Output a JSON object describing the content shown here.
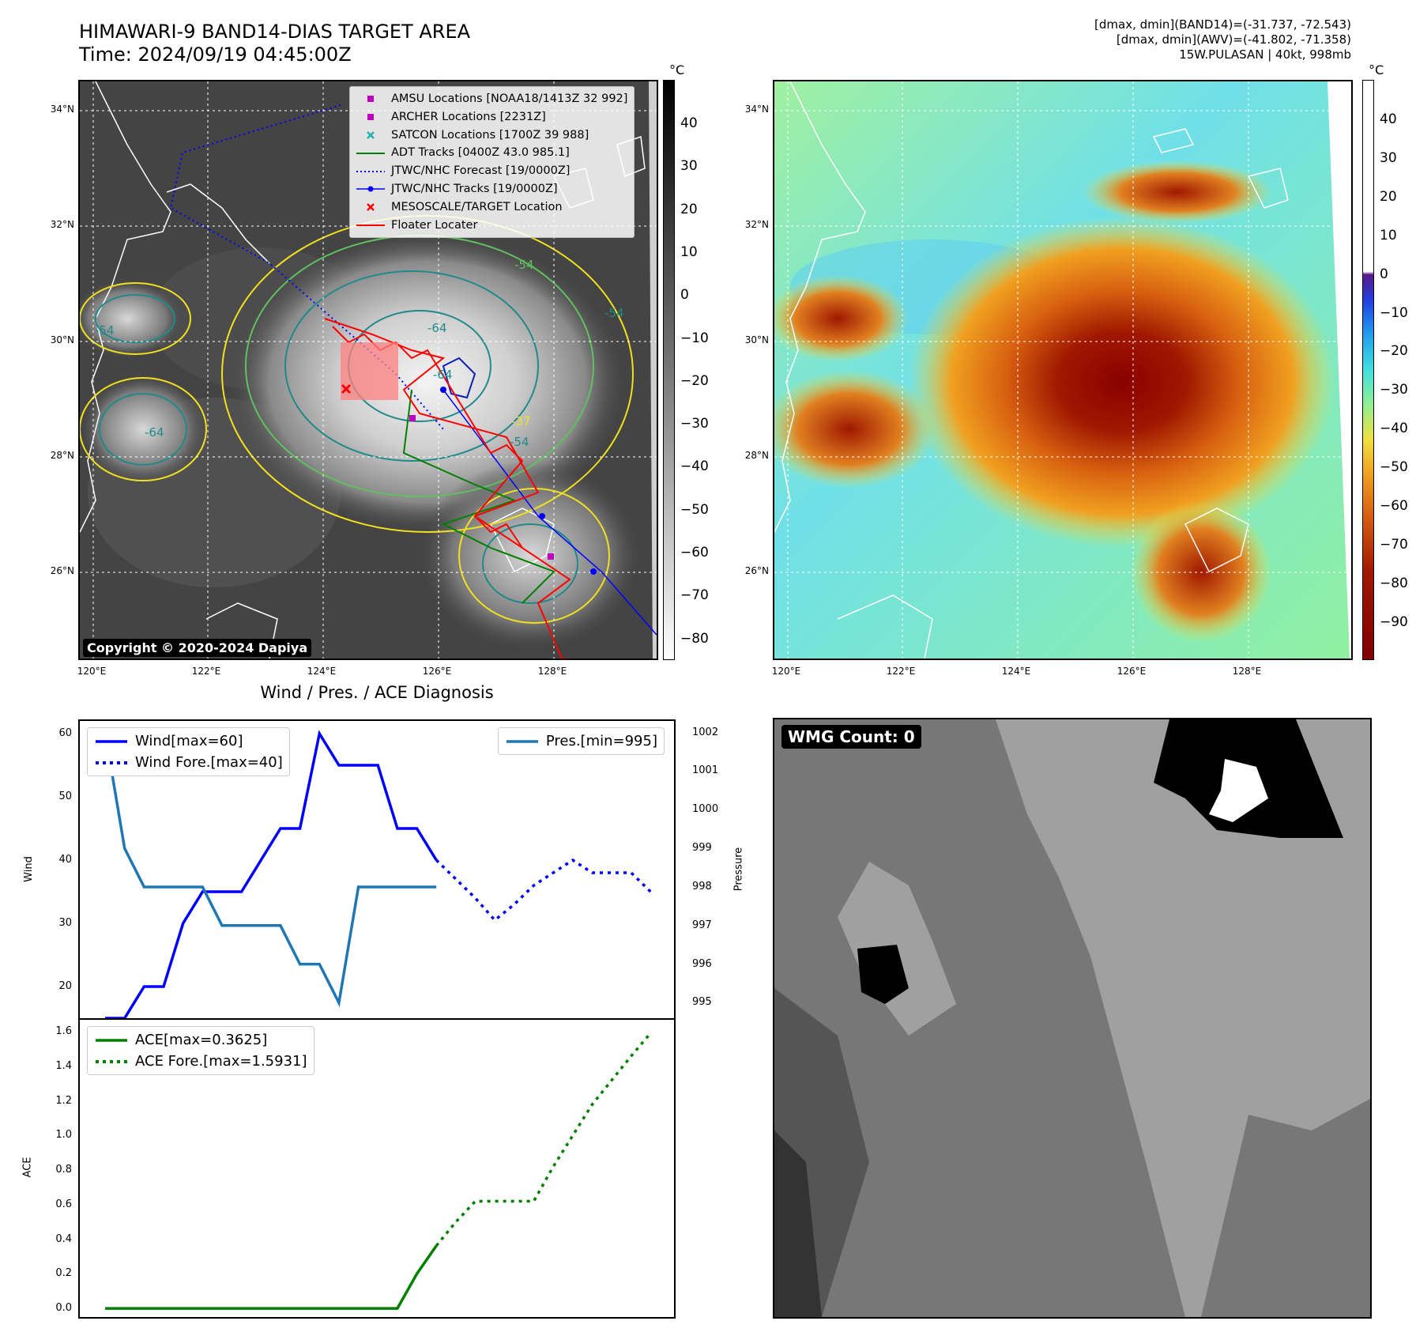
{
  "header": {
    "title_line1": "HIMAWARI-9 BAND14-DIAS TARGET AREA",
    "title_line2": "Time: 2024/09/19 04:45:00Z",
    "stats_line1": "[dmax, dmin](BAND14)=(-31.737, -72.543)",
    "stats_line2": "[dmax, dmin](AWV)=(-41.802, -71.358)",
    "stats_line3": "15W.PULASAN | 40kt, 998mb"
  },
  "map": {
    "lat_ticks": [
      "34°N",
      "32°N",
      "30°N",
      "28°N",
      "26°N"
    ],
    "lon_ticks": [
      "120°E",
      "122°E",
      "124°E",
      "126°E",
      "128°E"
    ],
    "copyright": "Copyright © 2020-2024 Dapiya",
    "contour_labels": [
      "-54",
      "-64",
      "-54",
      "-54",
      "-64",
      "-37",
      "-54",
      "-64"
    ],
    "legend": [
      {
        "label": "AMSU Locations [NOAA18/1413Z 32 992]",
        "kind": "square",
        "color": "#c000c0"
      },
      {
        "label": "ARCHER Locations [2231Z]",
        "kind": "square",
        "color": "#c000c0"
      },
      {
        "label": "SATCON Locations [1700Z 39 988]",
        "kind": "x",
        "color": "#20b0b0"
      },
      {
        "label": "ADT Tracks [0400Z 43.0 985.1]",
        "kind": "line",
        "color": "#008000"
      },
      {
        "label": "JTWC/NHC Forecast [19/0000Z]",
        "kind": "dotted",
        "color": "#0000ff"
      },
      {
        "label": "JTWC/NHC Tracks [19/0000Z]",
        "kind": "linedot",
        "color": "#0000ff"
      },
      {
        "label": "MESOSCALE/TARGET Location",
        "kind": "x",
        "color": "#ff0000"
      },
      {
        "label": "Floater Locater",
        "kind": "line",
        "color": "#ff0000"
      }
    ]
  },
  "colorbar_gray": {
    "unit": "°C",
    "ticks": [
      "40",
      "30",
      "20",
      "10",
      "0",
      "−10",
      "−20",
      "−30",
      "−40",
      "−50",
      "−60",
      "−70",
      "−80"
    ]
  },
  "colorbar_color": {
    "unit": "°C",
    "ticks": [
      "40",
      "30",
      "20",
      "10",
      "0",
      "−10",
      "−20",
      "−30",
      "−40",
      "−50",
      "−60",
      "−70",
      "−80",
      "−90"
    ]
  },
  "diagnosis": {
    "title": "Wind / Pres. / ACE Diagnosis",
    "wind_ylabel": "Wind",
    "pressure_ylabel": "Pressure",
    "ace_ylabel": "ACE",
    "legend_wind": "Wind[max=60]",
    "legend_wind_fore": "Wind Fore.[max=40]",
    "legend_pres": "Pres.[min=995]",
    "legend_ace": "ACE[max=0.3625]",
    "legend_ace_fore": "ACE Fore.[max=1.5931]",
    "wind_ticks": [
      "60",
      "50",
      "40",
      "30",
      "20"
    ],
    "pres_ticks": [
      "1002",
      "1001",
      "1000",
      "999",
      "998",
      "997",
      "996",
      "995"
    ],
    "ace_ticks": [
      "1.6",
      "1.4",
      "1.2",
      "1.0",
      "0.8",
      "0.6",
      "0.4",
      "0.2",
      "0.0"
    ]
  },
  "wmg": {
    "label": "WMG Count: 0"
  },
  "chart_data": [
    {
      "type": "line",
      "title": "Wind / Pres. / ACE Diagnosis",
      "ylabel": "Wind",
      "ylim": [
        15,
        62
      ],
      "series": [
        {
          "name": "Wind[max=60]",
          "x": [
            0,
            1,
            2,
            3,
            4,
            5,
            6,
            7,
            8,
            9,
            10,
            11,
            12,
            13,
            14,
            15,
            16,
            17
          ],
          "values": [
            15,
            15,
            20,
            20,
            30,
            35,
            35,
            35,
            40,
            45,
            45,
            60,
            55,
            55,
            55,
            45,
            45,
            40
          ],
          "color": "#0000ff",
          "style": "solid"
        },
        {
          "name": "Wind Fore.[max=40]",
          "x": [
            17,
            18,
            19,
            20,
            21,
            22,
            23,
            24,
            25,
            26,
            27,
            28
          ],
          "values": [
            40,
            37,
            34,
            30.5,
            33,
            36,
            38,
            40,
            38,
            38,
            38,
            35
          ],
          "color": "#0000ff",
          "style": "dotted"
        }
      ]
    },
    {
      "type": "line",
      "ylabel": "Pressure",
      "ylim": [
        994.6,
        1002.3
      ],
      "series": [
        {
          "name": "Pres.[min=995]",
          "x": [
            0,
            1,
            2,
            3,
            4,
            5,
            6,
            7,
            8,
            9,
            10,
            11,
            12,
            13,
            14,
            15,
            16,
            17
          ],
          "values": [
            1002,
            999,
            998,
            998,
            998,
            998,
            997,
            997,
            997,
            997,
            996,
            996,
            995,
            998,
            998,
            998,
            998,
            998
          ],
          "color": "#1f77b4",
          "style": "solid"
        }
      ]
    },
    {
      "type": "line",
      "ylabel": "ACE",
      "ylim": [
        -0.05,
        1.67
      ],
      "series": [
        {
          "name": "ACE[max=0.3625]",
          "x": [
            0,
            1,
            2,
            3,
            4,
            5,
            6,
            7,
            8,
            9,
            10,
            11,
            12,
            13,
            14,
            15,
            16,
            17
          ],
          "values": [
            0,
            0,
            0,
            0,
            0,
            0,
            0,
            0,
            0,
            0,
            0,
            0,
            0,
            0,
            0,
            0,
            0.2,
            0.3625
          ],
          "color": "#008000",
          "style": "solid"
        },
        {
          "name": "ACE Fore.[max=1.5931]",
          "x": [
            17,
            18,
            19,
            20,
            21,
            22,
            23,
            24,
            25,
            26,
            27,
            28
          ],
          "values": [
            0.3625,
            0.5,
            0.62,
            0.62,
            0.62,
            0.62,
            0.82,
            1.0,
            1.18,
            1.32,
            1.46,
            1.5931
          ],
          "color": "#008000",
          "style": "dotted"
        }
      ]
    }
  ]
}
